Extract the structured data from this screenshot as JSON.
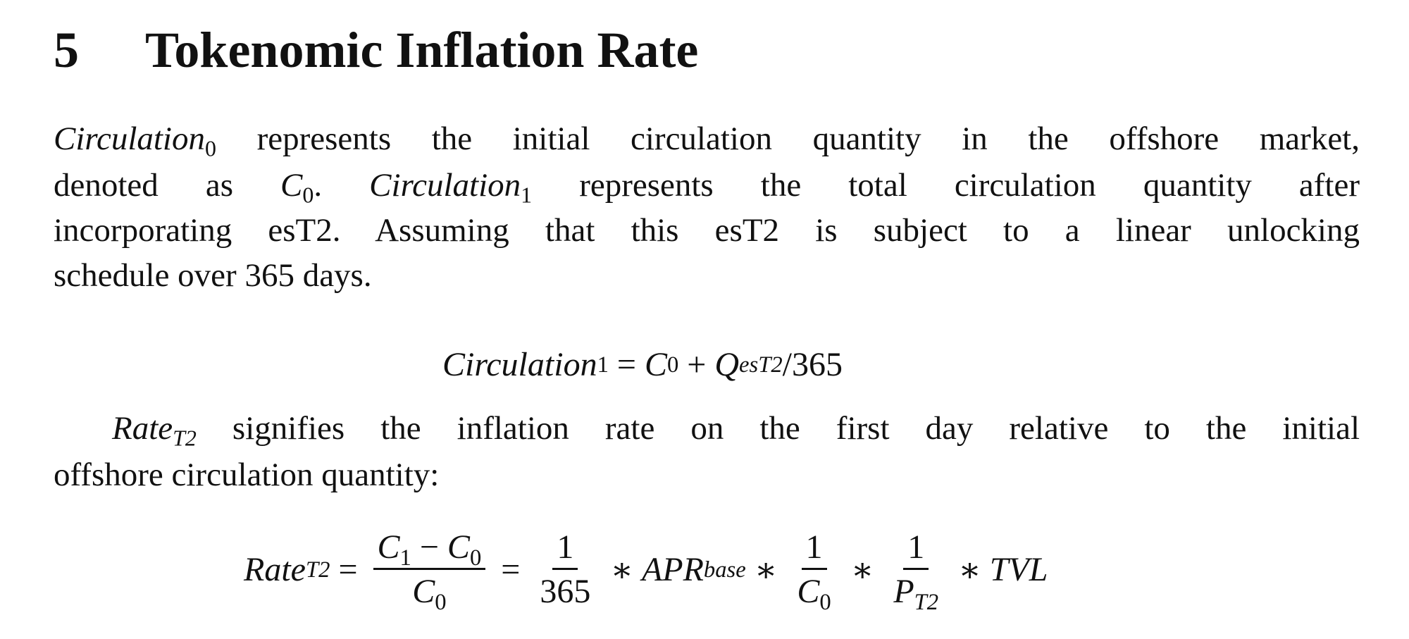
{
  "section": {
    "number": "5",
    "title": "Tokenomic Inflation Rate"
  },
  "paragraph1": {
    "l1_var": "Circulation",
    "l1_sub": "0",
    "l1_text": " represents the initial circulation quantity in the offshore market,",
    "l2_a": "denoted as ",
    "l2_var": "C",
    "l2_sub": "0",
    "l2_b": ".  ",
    "l2_var2": "Circulation",
    "l2_sub2": "1",
    "l2_c": " represents the total circulation quantity after",
    "l3": "incorporating esT2.  Assuming that this esT2 is subject to a linear unlocking",
    "l4": "schedule over 365 days."
  },
  "equation1": {
    "lhs": "Circulation",
    "lhs_sub": "1",
    "eq": "=",
    "c": "C",
    "c_sub": "0",
    "plus": "+",
    "q": "Q",
    "q_sub": "esT2",
    "rest": "/365"
  },
  "paragraph2": {
    "var": "Rate",
    "var_sub": "T2",
    "l1_text": " signifies the inflation rate on the first day relative to the initial",
    "l2": "offshore circulation quantity:"
  },
  "equation2": {
    "lhs": "Rate",
    "lhs_sub": "T2",
    "eq": "=",
    "f1_num_a": "C",
    "f1_num_a_sub": "1",
    "f1_minus": " − ",
    "f1_num_b": "C",
    "f1_num_b_sub": "0",
    "f1_den": "C",
    "f1_den_sub": "0",
    "f2_num": "1",
    "f2_den": "365",
    "times": "∗",
    "apr": "APR",
    "apr_sub": "base",
    "f3_num": "1",
    "f3_den": "C",
    "f3_den_sub": "0",
    "f4_num": "1",
    "f4_den": "P",
    "f4_den_sub": "T2",
    "tvl": "TVL"
  }
}
